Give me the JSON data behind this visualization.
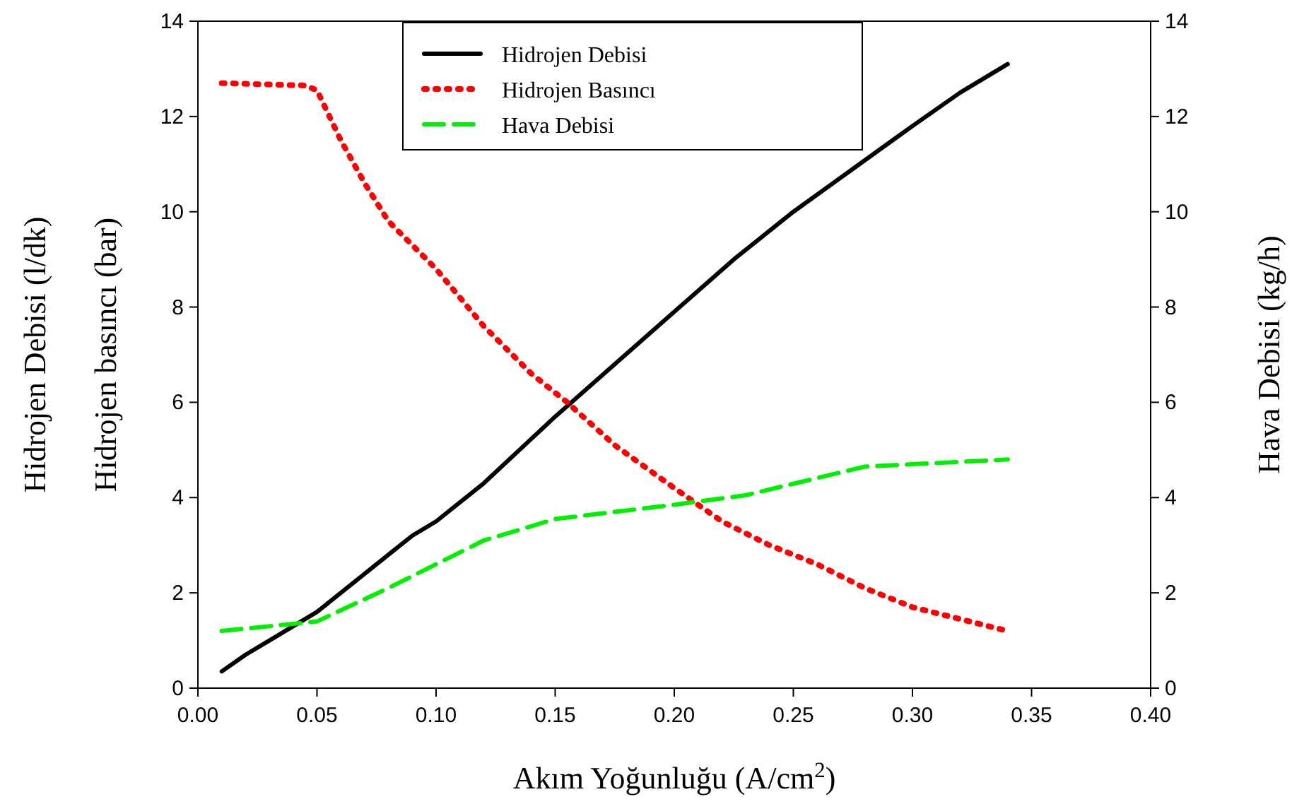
{
  "chart_data": {
    "type": "line",
    "xlabel": "Akım Yoğunluğu (A/cm$^{2}$)",
    "ylabel": "Hidrojen Debisi (l/dk)\nHidrojen basıncı (bar)",
    "y2label": "Hava Debisi (kg/h)",
    "xlim": [
      0,
      0.4
    ],
    "xticks": [
      {
        "value": 0,
        "label": "0.00"
      },
      {
        "value": 0.05,
        "label": "0.05"
      },
      {
        "value": 0.1,
        "label": "0.10"
      },
      {
        "value": 0.15,
        "label": "0.15"
      },
      {
        "value": 0.2,
        "label": "0.20"
      },
      {
        "value": 0.25,
        "label": "0.25"
      },
      {
        "value": 0.3,
        "label": "0.30"
      },
      {
        "value": 0.35,
        "label": "0.35"
      },
      {
        "value": 0.4,
        "label": "0.40"
      }
    ],
    "ylim": [
      0,
      14
    ],
    "yticks": [
      0,
      2,
      4,
      6,
      8,
      10,
      12,
      14
    ],
    "y2lim": [
      0,
      14
    ],
    "y2ticks": [
      0,
      2,
      4,
      6,
      8,
      10,
      12,
      14
    ],
    "legend": "top",
    "grid": false,
    "series": [
      {
        "name": "Hidrojen Debisi",
        "color": "#000000",
        "line_style": "solid",
        "x": [
          0.01,
          0.02,
          0.03,
          0.04,
          0.05,
          0.06,
          0.07,
          0.08,
          0.09,
          0.1,
          0.12,
          0.15,
          0.175,
          0.2,
          0.225,
          0.25,
          0.275,
          0.3,
          0.32,
          0.34
        ],
        "values": [
          0.35,
          0.7,
          1.0,
          1.3,
          1.6,
          2.0,
          2.4,
          2.8,
          3.2,
          3.5,
          4.3,
          5.7,
          6.8,
          7.9,
          9.0,
          10.0,
          10.9,
          11.8,
          12.5,
          13.1
        ]
      },
      {
        "name": "Hidrojen Basıncı",
        "color": "#ff0000",
        "line_style": "dotted",
        "x": [
          0.01,
          0.045,
          0.05,
          0.06,
          0.07,
          0.08,
          0.1,
          0.12,
          0.14,
          0.155,
          0.175,
          0.2,
          0.22,
          0.24,
          0.26,
          0.28,
          0.3,
          0.32,
          0.34
        ],
        "values": [
          12.7,
          12.65,
          12.55,
          11.5,
          10.6,
          9.8,
          8.8,
          7.6,
          6.6,
          6.0,
          5.1,
          4.2,
          3.5,
          3.0,
          2.6,
          2.1,
          1.7,
          1.45,
          1.2
        ]
      },
      {
        "name": "Hava Debisi",
        "color": "#00ee00",
        "line_style": "dashed",
        "axis": "y2",
        "x": [
          0.01,
          0.05,
          0.08,
          0.1,
          0.12,
          0.15,
          0.2,
          0.23,
          0.28,
          0.3,
          0.34
        ],
        "values": [
          1.2,
          1.4,
          2.1,
          2.6,
          3.1,
          3.55,
          3.85,
          4.05,
          4.65,
          4.7,
          4.8
        ]
      }
    ]
  }
}
